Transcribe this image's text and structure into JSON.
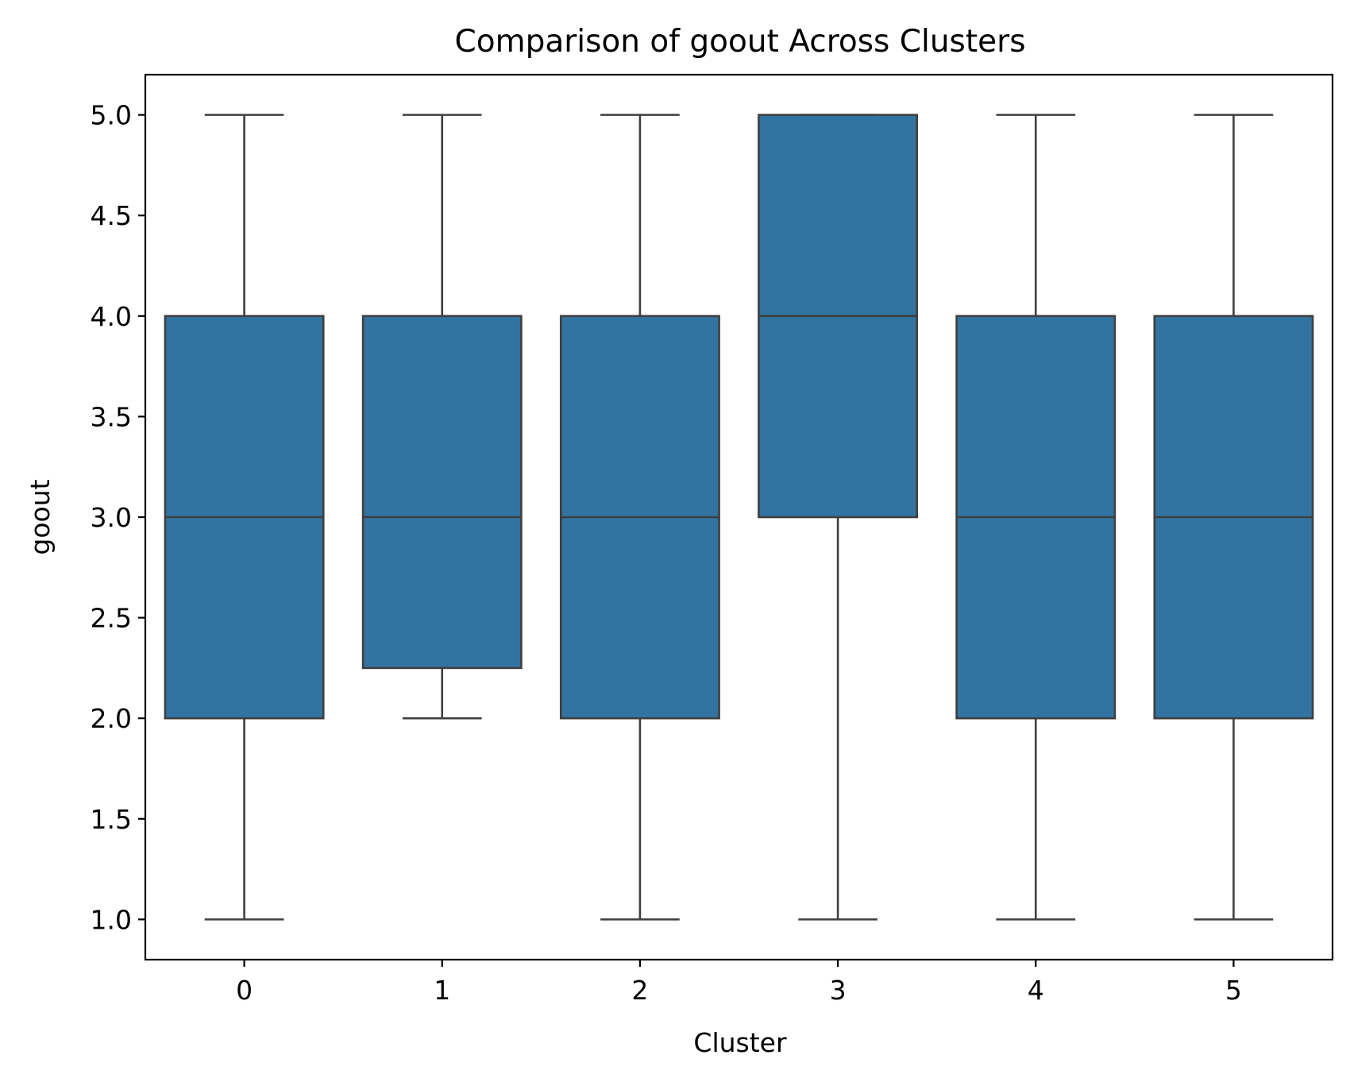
{
  "chart_data": {
    "type": "box",
    "title": "Comparison of goout Across Clusters",
    "xlabel": "Cluster",
    "ylabel": "goout",
    "categories": [
      "0",
      "1",
      "2",
      "3",
      "4",
      "5"
    ],
    "ylim": [
      0.8,
      5.2
    ],
    "yticks": [
      1.0,
      1.5,
      2.0,
      2.5,
      3.0,
      3.5,
      4.0,
      4.5,
      5.0
    ],
    "ytick_labels": [
      "1.0",
      "1.5",
      "2.0",
      "2.5",
      "3.0",
      "3.5",
      "4.0",
      "4.5",
      "5.0"
    ],
    "boxes": [
      {
        "category": "0",
        "whisker_low": 1.0,
        "q1": 2.0,
        "median": 3.0,
        "q3": 4.0,
        "whisker_high": 5.0
      },
      {
        "category": "1",
        "whisker_low": 2.0,
        "q1": 2.25,
        "median": 3.0,
        "q3": 4.0,
        "whisker_high": 5.0
      },
      {
        "category": "2",
        "whisker_low": 1.0,
        "q1": 2.0,
        "median": 3.0,
        "q3": 4.0,
        "whisker_high": 5.0
      },
      {
        "category": "3",
        "whisker_low": 1.0,
        "q1": 3.0,
        "median": 4.0,
        "q3": 5.0,
        "whisker_high": 5.0
      },
      {
        "category": "4",
        "whisker_low": 1.0,
        "q1": 2.0,
        "median": 3.0,
        "q3": 4.0,
        "whisker_high": 5.0
      },
      {
        "category": "5",
        "whisker_low": 1.0,
        "q1": 2.0,
        "median": 3.0,
        "q3": 4.0,
        "whisker_high": 5.0
      }
    ],
    "grid": false,
    "colors": {
      "box_fill": "#3274a1",
      "line": "#3f3f3f"
    }
  }
}
